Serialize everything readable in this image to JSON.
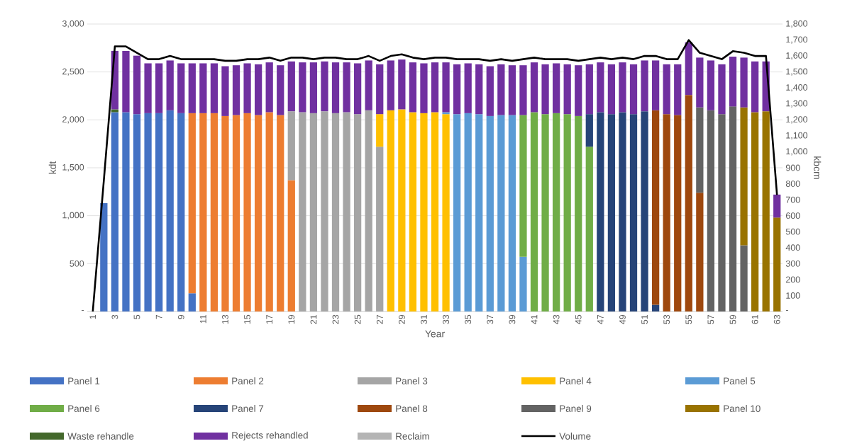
{
  "chart_data": {
    "type": "bar",
    "stacked": true,
    "xlabel": "Year",
    "ylabel": "kdt",
    "y2label": "kbcm",
    "categories": [
      "1",
      null,
      "3",
      null,
      "5",
      null,
      "7",
      null,
      "9",
      null,
      "11",
      null,
      "13",
      null,
      "15",
      null,
      "17",
      null,
      "19",
      null,
      "21",
      null,
      "23",
      null,
      "25",
      null,
      "27",
      null,
      "29",
      null,
      "31",
      null,
      "33",
      null,
      "35",
      null,
      "37",
      null,
      "39",
      null,
      "41",
      null,
      "43",
      null,
      "45",
      null,
      "47",
      null,
      "49",
      null,
      "51",
      null,
      "53",
      null,
      "55",
      null,
      "57",
      null,
      "59",
      null,
      "61",
      null,
      "63"
    ],
    "ylim": [
      0,
      3000
    ],
    "yticks": [
      {
        "value": 0,
        "label": "-"
      },
      {
        "value": 500,
        "label": "500"
      },
      {
        "value": 1000,
        "label": "1,000"
      },
      {
        "value": 1500,
        "label": "1,500"
      },
      {
        "value": 2000,
        "label": "2,000"
      },
      {
        "value": 2500,
        "label": "2,500"
      },
      {
        "value": 3000,
        "label": "3,000"
      }
    ],
    "y2lim": [
      0,
      1800
    ],
    "y2ticks": [
      {
        "value": 0,
        "label": "-"
      },
      {
        "value": 100,
        "label": "100"
      },
      {
        "value": 200,
        "label": "200"
      },
      {
        "value": 300,
        "label": "300"
      },
      {
        "value": 400,
        "label": "400"
      },
      {
        "value": 500,
        "label": "500"
      },
      {
        "value": 600,
        "label": "600"
      },
      {
        "value": 700,
        "label": "700"
      },
      {
        "value": 800,
        "label": "800"
      },
      {
        "value": 900,
        "label": "900"
      },
      {
        "value": 1000,
        "label": "1,000"
      },
      {
        "value": 1100,
        "label": "1,100"
      },
      {
        "value": 1200,
        "label": "1,200"
      },
      {
        "value": 1300,
        "label": "1,300"
      },
      {
        "value": 1400,
        "label": "1,400"
      },
      {
        "value": 1500,
        "label": "1,500"
      },
      {
        "value": 1600,
        "label": "1,600"
      },
      {
        "value": 1700,
        "label": "1,700"
      },
      {
        "value": 1800,
        "label": "1,800"
      }
    ],
    "grid": "y",
    "legend": "bottom",
    "series": [
      {
        "name": "Panel 1",
        "color": "#4472c4",
        "values": [
          null,
          1130,
          2080,
          2080,
          2060,
          2070,
          2070,
          2100,
          2070,
          190,
          null,
          null,
          null,
          null,
          null,
          null,
          null,
          null,
          null,
          null,
          null,
          null,
          null,
          null,
          null,
          null,
          null,
          null,
          null,
          null,
          null,
          null,
          null,
          null,
          null,
          null,
          null,
          null,
          null,
          null,
          null,
          null,
          null,
          null,
          null,
          null,
          null,
          null,
          null,
          null,
          null,
          null,
          null,
          null,
          null,
          null,
          null,
          null,
          null,
          null,
          null,
          null,
          null
        ]
      },
      {
        "name": "Panel 2",
        "color": "#ed7d31",
        "values": [
          null,
          null,
          null,
          null,
          null,
          null,
          null,
          null,
          null,
          1880,
          2070,
          2070,
          2040,
          2050,
          2070,
          2050,
          2080,
          2050,
          1370,
          null,
          null,
          null,
          null,
          null,
          null,
          null,
          null,
          null,
          null,
          null,
          null,
          null,
          null,
          null,
          null,
          null,
          null,
          null,
          null,
          null,
          null,
          null,
          null,
          null,
          null,
          null,
          null,
          null,
          null,
          null,
          null,
          null,
          null,
          null,
          null,
          null,
          null,
          null,
          null,
          null,
          null,
          null,
          null
        ]
      },
      {
        "name": "Panel 3",
        "color": "#a5a5a5",
        "values": [
          null,
          null,
          null,
          null,
          null,
          null,
          null,
          null,
          null,
          null,
          null,
          null,
          null,
          null,
          null,
          null,
          null,
          null,
          720,
          2080,
          2070,
          2090,
          2070,
          2080,
          2060,
          2100,
          1720,
          null,
          null,
          null,
          null,
          null,
          null,
          null,
          null,
          null,
          null,
          null,
          null,
          null,
          null,
          null,
          null,
          null,
          null,
          null,
          null,
          null,
          null,
          null,
          null,
          null,
          null,
          null,
          null,
          null,
          null,
          null,
          null,
          null,
          null,
          null,
          null
        ]
      },
      {
        "name": "Panel 4",
        "color": "#ffc000",
        "values": [
          null,
          null,
          null,
          null,
          null,
          null,
          null,
          null,
          null,
          null,
          null,
          null,
          null,
          null,
          null,
          null,
          null,
          null,
          null,
          null,
          null,
          null,
          null,
          null,
          null,
          null,
          340,
          2100,
          2110,
          2080,
          2070,
          2080,
          2060,
          null,
          null,
          null,
          null,
          null,
          null,
          null,
          null,
          null,
          null,
          null,
          null,
          null,
          null,
          null,
          null,
          null,
          null,
          null,
          null,
          null,
          null,
          null,
          null,
          null,
          null,
          null,
          null,
          null,
          null
        ]
      },
      {
        "name": "Panel 5",
        "color": "#5b9bd5",
        "values": [
          null,
          null,
          null,
          null,
          null,
          null,
          null,
          null,
          null,
          null,
          null,
          null,
          null,
          null,
          null,
          null,
          null,
          null,
          null,
          null,
          null,
          null,
          null,
          null,
          null,
          null,
          null,
          null,
          null,
          null,
          null,
          null,
          20,
          2060,
          2070,
          2060,
          2040,
          2050,
          2050,
          570,
          null,
          null,
          null,
          null,
          null,
          null,
          null,
          null,
          null,
          null,
          null,
          null,
          null,
          null,
          null,
          null,
          null,
          null,
          null,
          null,
          null,
          null,
          null
        ]
      },
      {
        "name": "Panel 6",
        "color": "#70ad47",
        "values": [
          null,
          null,
          null,
          null,
          null,
          null,
          null,
          null,
          null,
          null,
          null,
          null,
          null,
          null,
          null,
          null,
          null,
          null,
          null,
          null,
          null,
          null,
          null,
          null,
          null,
          null,
          null,
          null,
          null,
          null,
          null,
          null,
          null,
          null,
          null,
          null,
          null,
          null,
          null,
          1480,
          2080,
          2060,
          2070,
          2060,
          2040,
          1720,
          null,
          null,
          null,
          null,
          null,
          null,
          null,
          null,
          null,
          null,
          null,
          null,
          null,
          null,
          null,
          null,
          null
        ]
      },
      {
        "name": "Panel 7",
        "color": "#264478",
        "values": [
          null,
          null,
          null,
          null,
          null,
          null,
          null,
          null,
          null,
          null,
          null,
          null,
          null,
          null,
          null,
          null,
          null,
          null,
          null,
          null,
          null,
          null,
          null,
          null,
          null,
          null,
          null,
          null,
          null,
          null,
          null,
          null,
          null,
          null,
          null,
          null,
          null,
          null,
          null,
          null,
          null,
          null,
          null,
          null,
          null,
          340,
          2080,
          2060,
          2080,
          2060,
          2090,
          70,
          null,
          null,
          null,
          null,
          null,
          null,
          null,
          null,
          null,
          null,
          null
        ]
      },
      {
        "name": "Panel 8",
        "color": "#9e480e",
        "values": [
          null,
          null,
          null,
          null,
          null,
          null,
          null,
          null,
          null,
          null,
          null,
          null,
          null,
          null,
          null,
          null,
          null,
          null,
          null,
          null,
          null,
          null,
          null,
          null,
          null,
          null,
          null,
          null,
          null,
          null,
          null,
          null,
          null,
          null,
          null,
          null,
          null,
          null,
          null,
          null,
          null,
          null,
          null,
          null,
          null,
          null,
          null,
          null,
          null,
          null,
          null,
          2030,
          2060,
          2050,
          2260,
          1240,
          null,
          null,
          null,
          null,
          null,
          null,
          null
        ]
      },
      {
        "name": "Panel 9",
        "color": "#636363",
        "values": [
          null,
          null,
          null,
          null,
          null,
          null,
          null,
          null,
          null,
          null,
          null,
          null,
          null,
          null,
          null,
          null,
          null,
          null,
          null,
          null,
          null,
          null,
          null,
          null,
          null,
          null,
          null,
          null,
          null,
          null,
          null,
          null,
          null,
          null,
          null,
          null,
          null,
          null,
          null,
          null,
          null,
          null,
          null,
          null,
          null,
          null,
          null,
          null,
          null,
          null,
          null,
          null,
          null,
          null,
          null,
          890,
          2100,
          2060,
          2140,
          690,
          null,
          null,
          null
        ]
      },
      {
        "name": "Panel 10",
        "color": "#997300",
        "values": [
          null,
          null,
          null,
          null,
          null,
          null,
          null,
          null,
          null,
          null,
          null,
          null,
          null,
          null,
          null,
          null,
          null,
          null,
          null,
          null,
          null,
          null,
          null,
          null,
          null,
          null,
          null,
          null,
          null,
          null,
          null,
          null,
          null,
          null,
          null,
          null,
          null,
          null,
          null,
          null,
          null,
          null,
          null,
          null,
          null,
          null,
          null,
          null,
          null,
          null,
          null,
          null,
          null,
          null,
          null,
          null,
          null,
          null,
          null,
          1440,
          2080,
          2090,
          980
        ]
      },
      {
        "name": "Waste rehandle",
        "color": "#43682b",
        "values": [
          null,
          null,
          30,
          null,
          null,
          null,
          null,
          null,
          null,
          null,
          null,
          null,
          null,
          null,
          null,
          null,
          null,
          null,
          null,
          null,
          null,
          null,
          null,
          null,
          null,
          null,
          null,
          null,
          null,
          null,
          null,
          null,
          null,
          null,
          null,
          null,
          null,
          null,
          null,
          null,
          null,
          null,
          null,
          null,
          null,
          null,
          null,
          null,
          null,
          null,
          null,
          null,
          null,
          null,
          null,
          null,
          null,
          null,
          null,
          null,
          null,
          null,
          null
        ]
      },
      {
        "name": "Rejects rehandled",
        "color": "#7030a0",
        "values": [
          null,
          null,
          610,
          640,
          610,
          520,
          520,
          520,
          520,
          520,
          520,
          520,
          520,
          520,
          520,
          530,
          520,
          520,
          520,
          520,
          530,
          520,
          530,
          520,
          530,
          520,
          520,
          520,
          520,
          520,
          520,
          520,
          520,
          520,
          520,
          520,
          520,
          530,
          520,
          520,
          520,
          520,
          520,
          520,
          530,
          520,
          520,
          520,
          520,
          520,
          530,
          520,
          520,
          530,
          550,
          520,
          520,
          520,
          520,
          520,
          530,
          520,
          240
        ]
      },
      {
        "name": "Reclaim",
        "color": "#b4b4b4",
        "values": [
          null,
          null,
          null,
          null,
          null,
          null,
          null,
          null,
          null,
          null,
          null,
          null,
          null,
          null,
          null,
          null,
          null,
          null,
          null,
          null,
          null,
          null,
          null,
          null,
          null,
          null,
          null,
          null,
          null,
          null,
          null,
          null,
          null,
          null,
          null,
          null,
          null,
          null,
          null,
          null,
          null,
          null,
          null,
          null,
          null,
          null,
          null,
          null,
          null,
          null,
          null,
          null,
          null,
          null,
          null,
          null,
          null,
          null,
          null,
          null,
          null,
          null,
          null
        ]
      },
      {
        "name": "Volume",
        "type": "line",
        "axis": "y2",
        "color": "#000000",
        "values": [
          0,
          820,
          1660,
          1660,
          1620,
          1580,
          1580,
          1600,
          1580,
          1580,
          1580,
          1580,
          1570,
          1570,
          1580,
          1580,
          1590,
          1570,
          1590,
          1590,
          1580,
          1590,
          1590,
          1580,
          1580,
          1600,
          1570,
          1600,
          1610,
          1590,
          1580,
          1590,
          1590,
          1580,
          1580,
          1580,
          1570,
          1580,
          1570,
          1580,
          1590,
          1580,
          1580,
          1580,
          1570,
          1580,
          1590,
          1580,
          1590,
          1580,
          1600,
          1600,
          1580,
          1580,
          1700,
          1620,
          1600,
          1580,
          1630,
          1620,
          1600,
          1600,
          730
        ]
      }
    ]
  }
}
